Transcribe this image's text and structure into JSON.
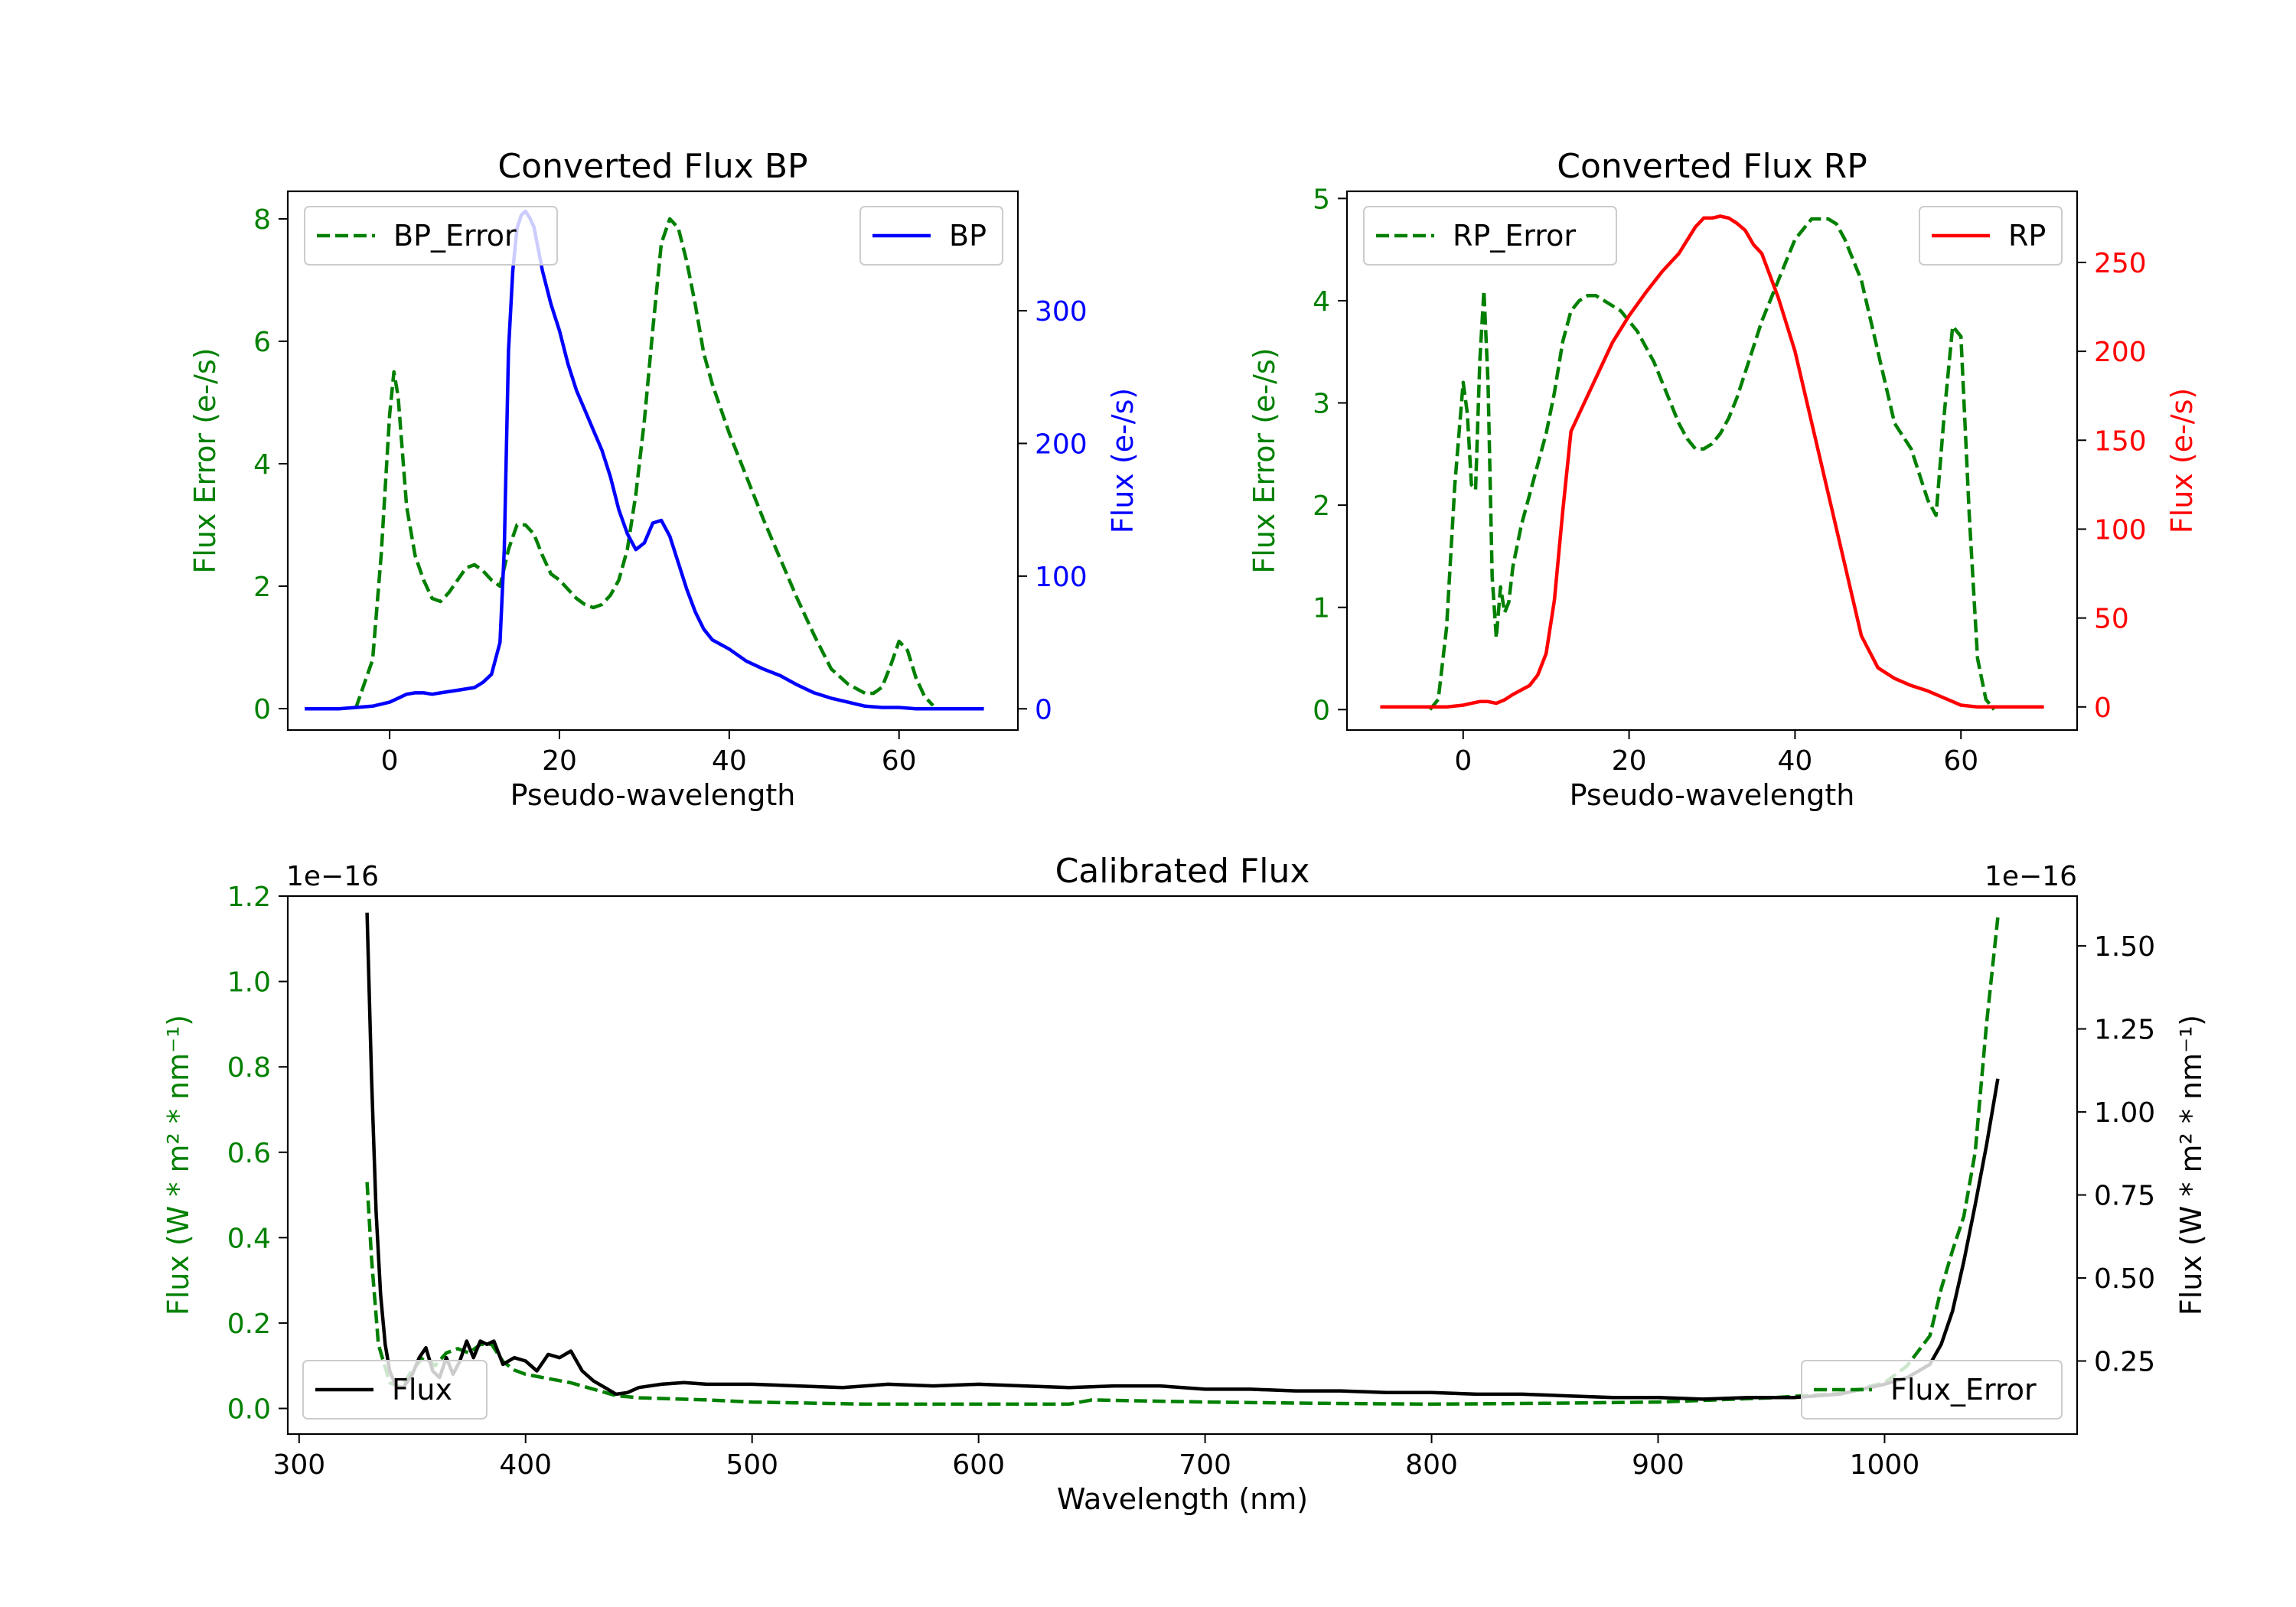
{
  "colors": {
    "error": "#008000",
    "bp": "#0000ff",
    "rp": "#ff0000",
    "flux": "#000000",
    "axis": "#000000"
  },
  "chart_data": [
    {
      "id": "bp",
      "type": "line",
      "title": "Converted Flux BP",
      "xlabel": "Pseudo-wavelength",
      "ylabel_left": "Flux Error (e-/s)",
      "ylabel_right": "Flux (e-/s)",
      "xlim": [
        -12,
        74
      ],
      "ylim_left": [
        -0.35,
        8.45
      ],
      "ylim_right": [
        -16,
        390
      ],
      "xticks": [
        0,
        20,
        40,
        60
      ],
      "yticks_left": [
        0,
        2,
        4,
        6,
        8
      ],
      "yticks_right": [
        0,
        100,
        200,
        300
      ],
      "legend_left": "BP_Error",
      "legend_right": "BP",
      "series": [
        {
          "name": "BP_Error",
          "axis": "left",
          "style": "dashed",
          "color": "error",
          "x": [
            -4,
            -2,
            -1,
            0,
            0.5,
            1,
            2,
            3,
            4,
            5,
            6,
            7,
            8,
            9,
            10,
            11,
            12,
            13,
            14,
            15,
            16,
            17,
            18,
            19,
            20,
            21,
            22,
            23,
            24,
            25,
            26,
            27,
            28,
            29,
            30,
            31,
            32,
            33,
            34,
            35,
            36,
            37,
            38,
            40,
            42,
            44,
            46,
            48,
            50,
            52,
            54,
            56,
            57,
            58,
            59,
            60,
            61,
            62,
            63,
            64
          ],
          "y": [
            0,
            0.8,
            2.5,
            4.8,
            5.5,
            5.1,
            3.3,
            2.5,
            2.1,
            1.8,
            1.75,
            1.9,
            2.1,
            2.3,
            2.35,
            2.25,
            2.1,
            2.0,
            2.6,
            3.0,
            3.0,
            2.85,
            2.5,
            2.2,
            2.1,
            1.95,
            1.8,
            1.7,
            1.65,
            1.7,
            1.85,
            2.1,
            2.6,
            3.5,
            4.7,
            6.2,
            7.6,
            8.0,
            7.85,
            7.3,
            6.6,
            5.8,
            5.3,
            4.5,
            3.8,
            3.1,
            2.45,
            1.8,
            1.2,
            0.65,
            0.4,
            0.25,
            0.25,
            0.35,
            0.7,
            1.1,
            0.95,
            0.5,
            0.2,
            0.05
          ]
        },
        {
          "name": "BP",
          "axis": "right",
          "style": "solid",
          "color": "bp",
          "x": [
            -10,
            -6,
            -2,
            0,
            1,
            2,
            3,
            4,
            5,
            6,
            8,
            10,
            11,
            12,
            13,
            13.5,
            14,
            14.5,
            15,
            15.5,
            16,
            16.5,
            17,
            18,
            19,
            20,
            21,
            22,
            23,
            24,
            25,
            26,
            27,
            28,
            29,
            30,
            31,
            32,
            33,
            34,
            35,
            36,
            37,
            38,
            40,
            42,
            44,
            46,
            48,
            50,
            52,
            54,
            56,
            58,
            60,
            62,
            64,
            66,
            70
          ],
          "y": [
            0,
            0,
            2,
            5,
            8,
            11,
            12,
            12,
            11,
            12,
            14,
            16,
            20,
            26,
            50,
            120,
            270,
            330,
            362,
            372,
            375,
            370,
            363,
            330,
            305,
            285,
            260,
            240,
            225,
            210,
            195,
            175,
            150,
            132,
            120,
            125,
            140,
            142,
            130,
            110,
            90,
            73,
            60,
            52,
            45,
            36,
            30,
            25,
            18,
            12,
            8,
            5,
            2,
            1,
            1,
            0,
            0,
            0,
            0
          ]
        }
      ]
    },
    {
      "id": "rp",
      "type": "line",
      "title": "Converted Flux RP",
      "xlabel": "Pseudo-wavelength",
      "ylabel_left": "Flux Error (e-/s)",
      "ylabel_right": "Flux (e-/s)",
      "xlim": [
        -14,
        74
      ],
      "ylim_left": [
        -0.2,
        5.07
      ],
      "ylim_right": [
        -13,
        290
      ],
      "xticks": [
        0,
        20,
        40,
        60
      ],
      "yticks_left": [
        0,
        1,
        2,
        3,
        4,
        5
      ],
      "yticks_right": [
        0,
        50,
        100,
        150,
        200,
        250
      ],
      "legend_left": "RP_Error",
      "legend_right": "RP",
      "series": [
        {
          "name": "RP_Error",
          "axis": "left",
          "style": "dashed",
          "color": "error",
          "x": [
            -4,
            -3,
            -2,
            -1,
            0,
            0.5,
            1,
            1.5,
            2,
            2.5,
            3,
            3.5,
            4,
            4.5,
            5,
            5.5,
            6,
            7,
            8,
            9,
            10,
            11,
            12,
            13,
            14,
            15,
            16,
            17,
            18,
            19,
            20,
            21,
            22,
            23,
            24,
            25,
            26,
            27,
            28,
            29,
            30,
            31,
            32,
            33,
            34,
            35,
            36,
            38,
            40,
            42,
            44,
            45,
            46,
            48,
            50,
            52,
            54,
            55,
            56,
            57,
            58,
            59,
            60,
            61,
            62,
            63,
            64
          ],
          "y": [
            0,
            0.1,
            0.8,
            2.2,
            3.2,
            2.9,
            2.2,
            2.15,
            3.4,
            4.1,
            3.2,
            1.3,
            0.7,
            1.2,
            0.95,
            1.05,
            1.4,
            1.8,
            2.1,
            2.4,
            2.7,
            3.1,
            3.6,
            3.9,
            4.0,
            4.05,
            4.05,
            4.0,
            3.95,
            3.9,
            3.8,
            3.7,
            3.55,
            3.4,
            3.2,
            3.0,
            2.8,
            2.65,
            2.55,
            2.55,
            2.6,
            2.7,
            2.85,
            3.05,
            3.3,
            3.55,
            3.8,
            4.2,
            4.6,
            4.8,
            4.8,
            4.75,
            4.6,
            4.2,
            3.5,
            2.8,
            2.55,
            2.3,
            2.05,
            1.9,
            2.9,
            3.75,
            3.65,
            1.9,
            0.5,
            0.1,
            0
          ]
        },
        {
          "name": "RP",
          "axis": "right",
          "style": "solid",
          "color": "rp",
          "x": [
            -10,
            -6,
            -2,
            0,
            1,
            2,
            3,
            4,
            5,
            6,
            8,
            9,
            10,
            11,
            12,
            13,
            14,
            16,
            18,
            20,
            22,
            24,
            26,
            28,
            29,
            30,
            31,
            32,
            33,
            34,
            35,
            36,
            38,
            40,
            42,
            44,
            46,
            48,
            50,
            52,
            54,
            56,
            58,
            60,
            62,
            64,
            66,
            70
          ],
          "y": [
            0,
            0,
            0,
            1,
            2,
            3,
            3,
            2,
            4,
            7,
            12,
            18,
            30,
            60,
            110,
            155,
            165,
            185,
            205,
            220,
            233,
            245,
            255,
            270,
            275,
            275,
            276,
            275,
            272,
            268,
            260,
            255,
            230,
            200,
            160,
            120,
            80,
            40,
            22,
            16,
            12,
            9,
            5,
            1,
            0,
            0,
            0,
            0
          ]
        }
      ]
    },
    {
      "id": "cal",
      "type": "line",
      "title": "Calibrated Flux",
      "xlabel": "Wavelength (nm)",
      "ylabel_left": "Flux (W * m² * nm⁻¹)",
      "ylabel_right": "Flux (W * m² * nm⁻¹)",
      "offset_left": "1e−16",
      "offset_right": "1e−16",
      "xlim": [
        295,
        1085
      ],
      "ylim_left": [
        -0.06,
        1.2
      ],
      "ylim_right": [
        0.03,
        1.65
      ],
      "xticks": [
        300,
        400,
        500,
        600,
        700,
        800,
        900,
        1000
      ],
      "yticks_left": [
        0.0,
        0.2,
        0.4,
        0.6,
        0.8,
        1.0,
        1.2
      ],
      "yticks_right": [
        0.25,
        0.5,
        0.75,
        1.0,
        1.25,
        1.5
      ],
      "ytick_labels_left": [
        "0.0",
        "0.2",
        "0.4",
        "0.6",
        "0.8",
        "1.0",
        "1.2"
      ],
      "ytick_labels_right": [
        "0.25",
        "0.50",
        "0.75",
        "1.00",
        "1.25",
        "1.50"
      ],
      "legend_left": "Flux",
      "legend_right": "Flux_Error",
      "series": [
        {
          "name": "Flux_Error",
          "axis": "left",
          "style": "dashed",
          "color": "error",
          "x": [
            330,
            332,
            335,
            340,
            345,
            350,
            355,
            360,
            365,
            370,
            375,
            380,
            385,
            390,
            395,
            400,
            410,
            420,
            430,
            440,
            450,
            480,
            500,
            550,
            600,
            640,
            650,
            700,
            750,
            800,
            850,
            900,
            950,
            980,
            1000,
            1010,
            1020,
            1025,
            1030,
            1035,
            1040,
            1045,
            1050
          ],
          "y": [
            0.53,
            0.35,
            0.15,
            0.06,
            0.05,
            0.09,
            0.12,
            0.1,
            0.13,
            0.14,
            0.13,
            0.15,
            0.15,
            0.11,
            0.09,
            0.08,
            0.07,
            0.06,
            0.045,
            0.03,
            0.025,
            0.02,
            0.015,
            0.01,
            0.01,
            0.01,
            0.02,
            0.015,
            0.012,
            0.01,
            0.012,
            0.015,
            0.025,
            0.035,
            0.06,
            0.1,
            0.17,
            0.28,
            0.37,
            0.45,
            0.6,
            0.9,
            1.15
          ]
        },
        {
          "name": "Flux",
          "axis": "right",
          "style": "solid",
          "color": "flux",
          "x": [
            330,
            332,
            334,
            336,
            338,
            340,
            343,
            346,
            350,
            353,
            356,
            359,
            362,
            365,
            368,
            371,
            374,
            377,
            380,
            383,
            386,
            390,
            395,
            400,
            405,
            410,
            415,
            420,
            425,
            430,
            435,
            440,
            445,
            450,
            460,
            470,
            480,
            500,
            520,
            540,
            560,
            580,
            600,
            620,
            640,
            660,
            680,
            700,
            720,
            740,
            760,
            780,
            800,
            820,
            840,
            860,
            880,
            900,
            920,
            940,
            960,
            980,
            1000,
            1010,
            1020,
            1025,
            1030,
            1035,
            1040,
            1045,
            1050
          ],
          "y": [
            1.6,
            1.1,
            0.7,
            0.45,
            0.3,
            0.22,
            0.17,
            0.17,
            0.21,
            0.26,
            0.29,
            0.22,
            0.2,
            0.26,
            0.21,
            0.25,
            0.31,
            0.26,
            0.31,
            0.3,
            0.31,
            0.24,
            0.26,
            0.25,
            0.22,
            0.27,
            0.26,
            0.28,
            0.22,
            0.19,
            0.17,
            0.15,
            0.155,
            0.17,
            0.18,
            0.185,
            0.18,
            0.18,
            0.175,
            0.17,
            0.18,
            0.175,
            0.18,
            0.175,
            0.17,
            0.175,
            0.175,
            0.165,
            0.165,
            0.16,
            0.16,
            0.155,
            0.155,
            0.15,
            0.15,
            0.145,
            0.14,
            0.14,
            0.135,
            0.14,
            0.14,
            0.15,
            0.18,
            0.2,
            0.24,
            0.3,
            0.4,
            0.55,
            0.72,
            0.9,
            1.1
          ]
        }
      ]
    }
  ]
}
